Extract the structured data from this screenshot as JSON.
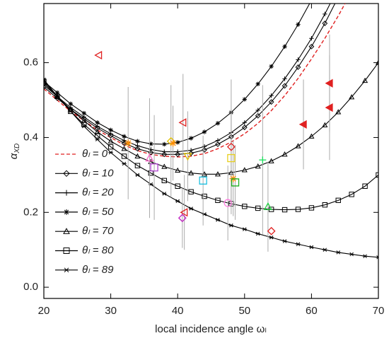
{
  "chart_data": {
    "type": "line",
    "x_label": "local incidence angle ωₗ",
    "y_label": "α",
    "y_label_sub": "XD",
    "xlim": [
      20,
      70
    ],
    "ylim": [
      -0.03,
      0.758
    ],
    "xticks": [
      20,
      30,
      40,
      50,
      60,
      70
    ],
    "yticks": [
      {
        "value": 0,
        "label": "0.0"
      },
      {
        "value": 0.2,
        "label": "0.2"
      },
      {
        "value": 0.4,
        "label": "0.4"
      },
      {
        "value": 0.6,
        "label": "0.6"
      }
    ],
    "legend": "left",
    "x": [
      20,
      22,
      24,
      26,
      28,
      30,
      32,
      34,
      36,
      38,
      40,
      42,
      44,
      46,
      48,
      50,
      52,
      54,
      56,
      58,
      60,
      62,
      64,
      66,
      68,
      70
    ],
    "series": [
      {
        "name": "θₗ = 0",
        "color": "#e02020",
        "dash": true,
        "marker": "none",
        "values": [
          0.53,
          0.5,
          0.47,
          0.445,
          0.42,
          0.4,
          0.38,
          0.365,
          0.355,
          0.35,
          0.348,
          0.35,
          0.357,
          0.37,
          0.388,
          0.41,
          0.438,
          0.472,
          0.512,
          0.558,
          0.61,
          0.665,
          0.725,
          0.79,
          null,
          null
        ]
      },
      {
        "name": "θₗ = 10",
        "color": "#000000",
        "dash": false,
        "marker": "diamond",
        "values": [
          0.535,
          0.505,
          0.475,
          0.45,
          0.425,
          0.405,
          0.385,
          0.37,
          0.36,
          0.355,
          0.355,
          0.358,
          0.367,
          0.382,
          0.402,
          0.427,
          0.458,
          0.495,
          0.538,
          0.588,
          0.643,
          0.705,
          0.775,
          null,
          null,
          null
        ]
      },
      {
        "name": "θₗ = 20",
        "color": "#000000",
        "dash": false,
        "marker": "plus",
        "values": [
          0.54,
          0.51,
          0.48,
          0.455,
          0.43,
          0.41,
          0.392,
          0.378,
          0.368,
          0.362,
          0.362,
          0.366,
          0.376,
          0.392,
          0.413,
          0.44,
          0.473,
          0.512,
          0.557,
          0.608,
          0.665,
          0.73,
          0.8,
          null,
          null,
          null
        ]
      },
      {
        "name": "θₗ = 50",
        "color": "#000000",
        "dash": false,
        "marker": "asterisk",
        "values": [
          0.55,
          0.52,
          0.49,
          0.465,
          0.44,
          0.42,
          0.403,
          0.39,
          0.383,
          0.382,
          0.387,
          0.398,
          0.415,
          0.438,
          0.467,
          0.502,
          0.543,
          0.59,
          0.643,
          0.702,
          0.767,
          null,
          null,
          null,
          null,
          null
        ]
      },
      {
        "name": "θₗ = 70",
        "color": "#000000",
        "dash": false,
        "marker": "triangle-up",
        "values": [
          0.545,
          0.51,
          0.475,
          0.445,
          0.415,
          0.39,
          0.37,
          0.35,
          0.335,
          0.322,
          0.312,
          0.305,
          0.302,
          0.302,
          0.306,
          0.313,
          0.323,
          0.337,
          0.355,
          0.377,
          0.403,
          0.433,
          0.468,
          0.508,
          0.552,
          0.6
        ]
      },
      {
        "name": "θₗ = 80",
        "color": "#000000",
        "dash": false,
        "marker": "square",
        "values": [
          0.55,
          0.51,
          0.47,
          0.435,
          0.405,
          0.375,
          0.35,
          0.325,
          0.305,
          0.285,
          0.27,
          0.255,
          0.243,
          0.232,
          0.223,
          0.216,
          0.211,
          0.208,
          0.207,
          0.208,
          0.212,
          0.22,
          0.232,
          0.248,
          0.27,
          0.3
        ]
      },
      {
        "name": "θₗ = 89",
        "color": "#000000",
        "dash": false,
        "marker": "xbar",
        "values": [
          0.555,
          0.51,
          0.47,
          0.43,
          0.395,
          0.36,
          0.33,
          0.3,
          0.275,
          0.25,
          0.23,
          0.21,
          0.195,
          0.18,
          0.165,
          0.155,
          0.143,
          0.133,
          0.123,
          0.115,
          0.107,
          0.1,
          0.093,
          0.088,
          0.083,
          0.08
        ]
      }
    ],
    "observations": {
      "x": [
        28.2,
        32.6,
        35.8,
        36.5,
        39.0,
        39.3,
        40.8,
        41.0,
        40.7,
        41.5,
        43.8,
        47.5,
        48.0,
        48.3,
        48.6,
        48.0,
        52.7,
        53.5,
        54.0,
        58.8,
        62.7,
        62.7
      ],
      "values": [
        0.62,
        0.385,
        0.345,
        0.32,
        0.39,
        0.385,
        0.44,
        0.2,
        0.185,
        0.35,
        0.285,
        0.225,
        0.345,
        0.29,
        0.28,
        0.375,
        0.34,
        0.215,
        0.15,
        0.435,
        0.545,
        0.48
      ],
      "errors": [
        null,
        0.15,
        0.16,
        0.14,
        0.15,
        0.1,
        0.13,
        0.1,
        0.08,
        0.12,
        0.12,
        0.1,
        0.13,
        0.1,
        0.1,
        0.18,
        0.2,
        0.12,
        null,
        0.12,
        0.13,
        0.14
      ],
      "colors": [
        "#e02020",
        "#ff8c00",
        "#ff66cc",
        "#b040d0",
        "#e0c000",
        "#ff8c00",
        "#e02020",
        "#e02020",
        "#c020c0",
        "#e0c000",
        "#20c0e0",
        "#ff80e0",
        "#e8d020",
        "#ff8c00",
        "#20b020",
        "#e02020",
        "#20e060",
        "#20d040",
        "#e02020",
        "#e02020",
        "#e02020",
        "#e02020"
      ],
      "markers": [
        "triangle-left",
        "asterisk",
        "triangle-up",
        "square",
        "diamond",
        "asterisk",
        "triangle-left",
        "triangle-left",
        "diamond",
        "triangle-down",
        "square",
        "circle",
        "square",
        "asterisk",
        "square",
        "diamond",
        "plus",
        "triangle-up",
        "diamond",
        "triangle-left-filled",
        "triangle-left-filled",
        "triangle-left-filled"
      ]
    }
  }
}
